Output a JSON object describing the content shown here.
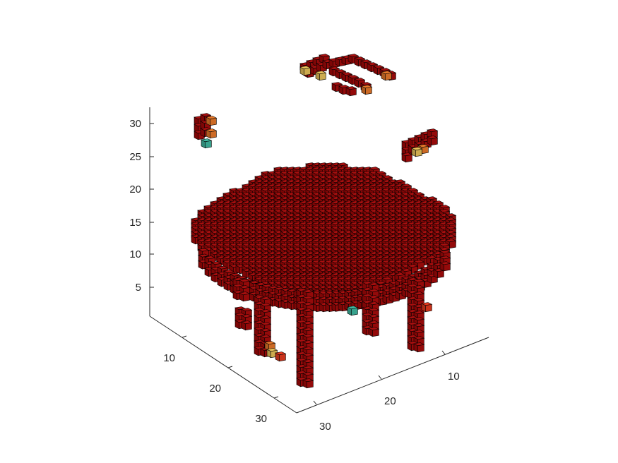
{
  "chart_data": {
    "type": "voxel",
    "title": "",
    "xlabel": "",
    "ylabel": "",
    "zlabel": "",
    "x_ticks": [
      "10",
      "20",
      "30"
    ],
    "y_ticks": [
      "10",
      "20",
      "30"
    ],
    "z_ticks": [
      "5",
      "10",
      "15",
      "20",
      "25",
      "30"
    ],
    "xlim": [
      0,
      32
    ],
    "ylim": [
      0,
      32
    ],
    "zlim": [
      0,
      32
    ],
    "grid": false,
    "colors": {
      "voxel": "#a80f0f",
      "highlight_orange": "#e8792a",
      "highlight_yellow": "#e9c25a",
      "highlight_teal": "#3fb8a0"
    },
    "description_shape": "table: round top at z≈14-20, four legs down to z≈0, with floating noise voxel clusters above"
  }
}
